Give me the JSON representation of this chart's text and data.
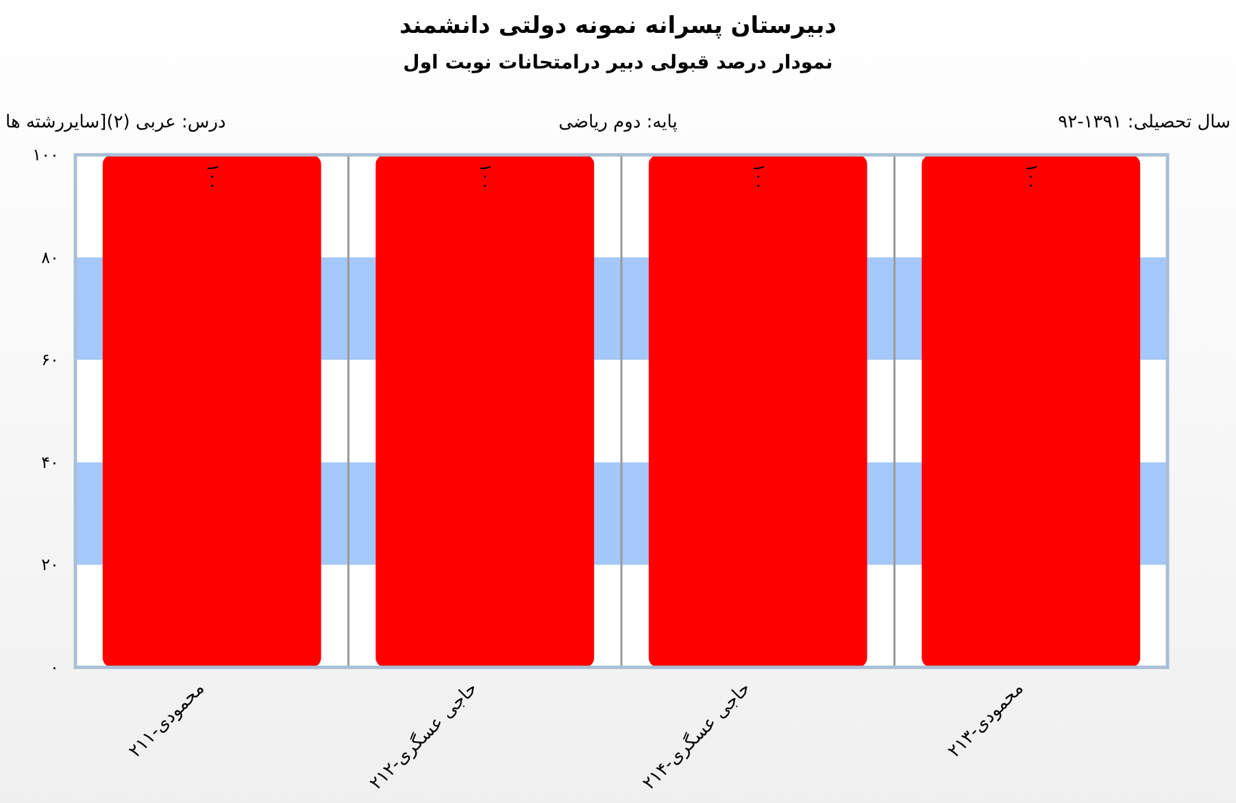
{
  "chart_data": {
    "type": "bar",
    "title": "دبیرستان پسرانه نمونه دولتی دانشمند",
    "subtitle": "نمودار درصد قبولی دبیر درامتحانات نوبت اول",
    "annotations": [
      "سال تحصیلی: ۱۳۹۱-۹۲",
      "پایه: دوم ریاضی",
      "درس: عربی  (۲)[سایررشته ها"
    ],
    "categories": [
      "محمودی-۲۱۱",
      "حاجی عسگری-۲۱۲",
      "حاجی عسگری-۲۱۴",
      "محمودی-۲۱۳"
    ],
    "values": [
      100,
      100,
      100,
      100
    ],
    "color": "#ff0000",
    "value_labels": [
      "۱۰۰",
      "۱۰۰",
      "۱۰۰",
      "۱۰۰"
    ],
    "ylim": [
      0,
      100
    ],
    "yticks": [
      {
        "value": 0,
        "label": "۰"
      },
      {
        "value": 20,
        "label": "۲۰"
      },
      {
        "value": 40,
        "label": "۴۰"
      },
      {
        "value": 60,
        "label": "۶۰"
      },
      {
        "value": 80,
        "label": "۸۰"
      },
      {
        "value": 100,
        "label": "۱۰۰"
      }
    ],
    "bands": [
      {
        "axis": "y",
        "from": 20,
        "to": 40,
        "color": "#a5c8fa"
      },
      {
        "axis": "y",
        "from": 60,
        "to": 80,
        "color": "#a5c8fa"
      }
    ],
    "grid": "x"
  }
}
